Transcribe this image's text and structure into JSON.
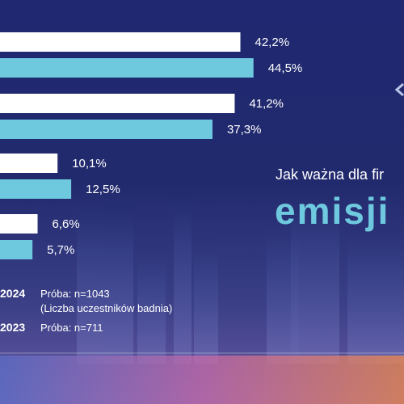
{
  "colors": {
    "background": "#20286b",
    "bar_2024": "#ffffff",
    "bar_2023": "#6ec9df",
    "accent_text": "#6ec9df"
  },
  "headline": "Jak ważna dla fir",
  "big_word": "emisji",
  "legend": {
    "y2024": {
      "year": "2024",
      "sample": "Próba: n=1043",
      "note": "(Liczba uczestników badnia)"
    },
    "y2023": {
      "year": "2023",
      "sample": "Próba: n=711"
    }
  },
  "decor_icon": "chevron-left-icon",
  "chart_data": {
    "type": "bar",
    "orientation": "horizontal",
    "series": [
      {
        "name": "2024",
        "color": "#ffffff",
        "values": [
          42.2,
          41.2,
          10.1,
          6.6
        ],
        "labels": [
          "42,2%",
          "41,2%",
          "10,1%",
          "6,6%"
        ]
      },
      {
        "name": "2023",
        "color": "#6ec9df",
        "values": [
          44.5,
          37.3,
          12.5,
          5.7
        ],
        "labels": [
          "44,5%",
          "37,3%",
          "12,5%",
          "5,7%"
        ]
      }
    ],
    "unit": "%",
    "xlim": [
      0,
      45
    ],
    "grid": false,
    "legend_position": "bottom-left"
  }
}
